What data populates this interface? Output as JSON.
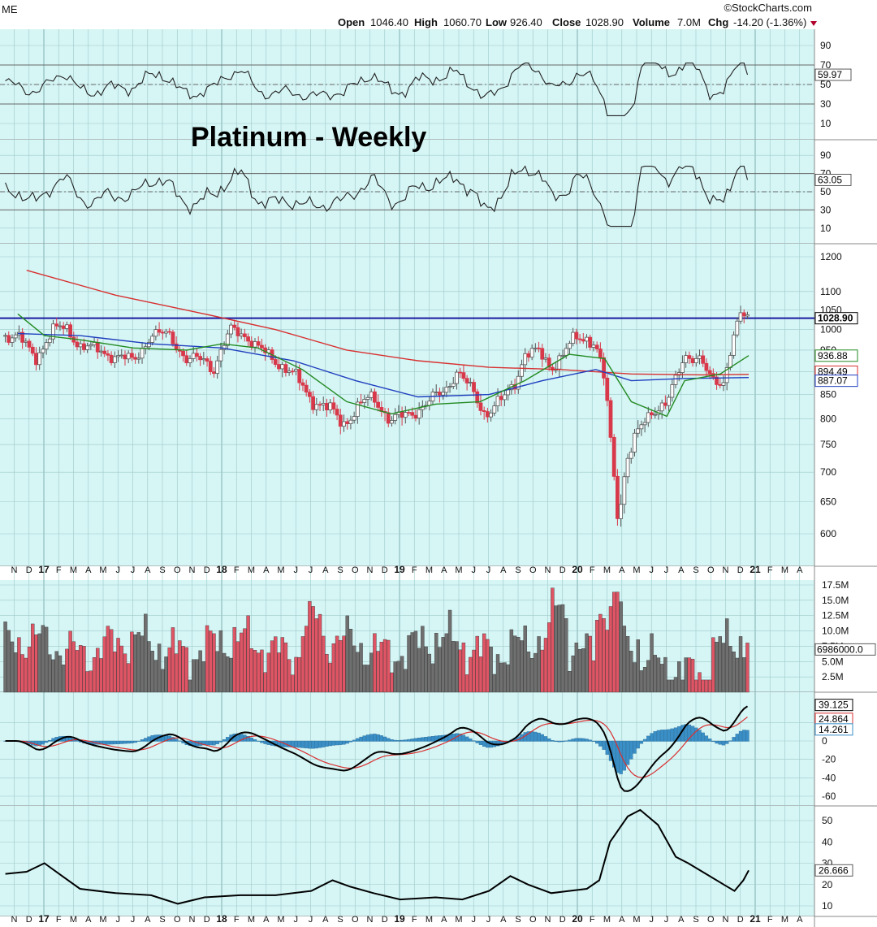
{
  "header": {
    "corner_text": "ME",
    "brand": "©StockCharts.com",
    "open_label": "Open",
    "open_value": "1046.40",
    "high_label": "High",
    "high_value": "1060.70",
    "low_label": "Low",
    "low_value": "926.40",
    "close_label": "Close",
    "close_value": "1028.90",
    "volume_label": "Volume",
    "volume_value": "7.0M",
    "chg_label": "Chg",
    "chg_value": "-14.20 (-1.36%)"
  },
  "colors": {
    "panel_bg": "#d6f5f5",
    "grid": "#9ec9c9",
    "up": "#555555",
    "down": "#d8394a",
    "ma_green": "#228b22",
    "ma_blue": "#1f3fbf",
    "ma_red": "#d83030",
    "hline": "#1a1aa0",
    "histogram": "#3a8fc7"
  },
  "chart_data": {
    "type": "candlestick",
    "title": "Platinum - Weekly",
    "frequency": "weekly",
    "date_range": [
      "2016-11",
      "2020-12"
    ],
    "time_axis": {
      "labels": [
        "N",
        "D",
        "17",
        "F",
        "M",
        "A",
        "M",
        "J",
        "J",
        "A",
        "S",
        "O",
        "N",
        "D",
        "18",
        "F",
        "M",
        "A",
        "M",
        "J",
        "J",
        "A",
        "S",
        "O",
        "N",
        "D",
        "19",
        "F",
        "M",
        "A",
        "M",
        "J",
        "J",
        "A",
        "S",
        "O",
        "N",
        "D",
        "20",
        "F",
        "M",
        "A",
        "M",
        "J",
        "J",
        "A",
        "S",
        "O",
        "N",
        "D",
        "21",
        "F",
        "M",
        "A"
      ],
      "year_markers": [
        "17",
        "18",
        "19",
        "20",
        "21"
      ]
    },
    "price_panel": {
      "y_ticks": [
        600,
        650,
        700,
        750,
        800,
        850,
        900,
        950,
        1000,
        1050,
        1100,
        1200
      ],
      "resistance_line": 1028.9,
      "last_close": "1028.90",
      "ma_tags": [
        "936.88",
        "894.49",
        "887.07"
      ],
      "close_path_points": [
        [
          2016.85,
          985
        ],
        [
          2016.95,
          930
        ],
        [
          2017.05,
          1000
        ],
        [
          2017.12,
          1005
        ],
        [
          2017.2,
          960
        ],
        [
          2017.3,
          950
        ],
        [
          2017.4,
          935
        ],
        [
          2017.5,
          925
        ],
        [
          2017.6,
          985
        ],
        [
          2017.7,
          990
        ],
        [
          2017.8,
          925
        ],
        [
          2017.9,
          930
        ],
        [
          2017.95,
          905
        ],
        [
          2018.05,
          1000
        ],
        [
          2018.12,
          990
        ],
        [
          2018.2,
          955
        ],
        [
          2018.3,
          925
        ],
        [
          2018.4,
          895
        ],
        [
          2018.5,
          840
        ],
        [
          2018.6,
          820
        ],
        [
          2018.68,
          790
        ],
        [
          2018.78,
          830
        ],
        [
          2018.85,
          845
        ],
        [
          2018.95,
          795
        ],
        [
          2019.05,
          810
        ],
        [
          2019.15,
          830
        ],
        [
          2019.25,
          860
        ],
        [
          2019.32,
          900
        ],
        [
          2019.4,
          860
        ],
        [
          2019.48,
          810
        ],
        [
          2019.58,
          840
        ],
        [
          2019.65,
          880
        ],
        [
          2019.7,
          940
        ],
        [
          2019.78,
          945
        ],
        [
          2019.85,
          910
        ],
        [
          2019.92,
          940
        ],
        [
          2019.98,
          980
        ],
        [
          2020.05,
          980
        ],
        [
          2020.1,
          960
        ],
        [
          2020.15,
          880
        ],
        [
          2020.2,
          700
        ],
        [
          2020.23,
          620
        ],
        [
          2020.27,
          720
        ],
        [
          2020.35,
          780
        ],
        [
          2020.42,
          820
        ],
        [
          2020.5,
          830
        ],
        [
          2020.55,
          880
        ],
        [
          2020.6,
          940
        ],
        [
          2020.68,
          930
        ],
        [
          2020.75,
          880
        ],
        [
          2020.82,
          880
        ],
        [
          2020.88,
          990
        ],
        [
          2020.92,
          1040
        ],
        [
          2020.96,
          1028.9
        ]
      ],
      "ma_green_points": [
        [
          2016.85,
          1040
        ],
        [
          2017.0,
          985
        ],
        [
          2017.2,
          975
        ],
        [
          2017.5,
          955
        ],
        [
          2017.8,
          950
        ],
        [
          2018.0,
          965
        ],
        [
          2018.2,
          955
        ],
        [
          2018.45,
          905
        ],
        [
          2018.7,
          835
        ],
        [
          2018.95,
          810
        ],
        [
          2019.2,
          830
        ],
        [
          2019.45,
          835
        ],
        [
          2019.7,
          880
        ],
        [
          2019.95,
          940
        ],
        [
          2020.15,
          930
        ],
        [
          2020.3,
          835
        ],
        [
          2020.5,
          805
        ],
        [
          2020.6,
          880
        ],
        [
          2020.8,
          895
        ],
        [
          2020.96,
          937
        ]
      ],
      "ma_blue_points": [
        [
          2016.85,
          990
        ],
        [
          2017.2,
          985
        ],
        [
          2017.6,
          965
        ],
        [
          2018.0,
          955
        ],
        [
          2018.4,
          925
        ],
        [
          2018.75,
          880
        ],
        [
          2019.1,
          845
        ],
        [
          2019.5,
          850
        ],
        [
          2019.8,
          880
        ],
        [
          2020.1,
          905
        ],
        [
          2020.3,
          880
        ],
        [
          2020.6,
          885
        ],
        [
          2020.96,
          887
        ]
      ],
      "ma_red_points": [
        [
          2016.9,
          1160
        ],
        [
          2017.4,
          1090
        ],
        [
          2017.9,
          1040
        ],
        [
          2018.3,
          1000
        ],
        [
          2018.7,
          950
        ],
        [
          2019.1,
          925
        ],
        [
          2019.5,
          910
        ],
        [
          2019.9,
          905
        ],
        [
          2020.3,
          895
        ],
        [
          2020.7,
          893
        ],
        [
          2020.96,
          894
        ]
      ]
    },
    "rsi_panel_1": {
      "y_ticks": [
        10,
        30,
        50,
        70,
        90
      ],
      "last_value": "59.97"
    },
    "rsi_panel_2": {
      "y_ticks": [
        10,
        30,
        50,
        70,
        90
      ],
      "last_value": "63.05"
    },
    "volume_panel": {
      "y_ticks": [
        "2.5M",
        "5.0M",
        "7.5M",
        "10.0M",
        "12.5M",
        "15.0M",
        "17.5M"
      ],
      "last_value": "6986000.0"
    },
    "macd_panel": {
      "y_ticks": [
        -60,
        -40,
        -20,
        0,
        20
      ],
      "macd_value": "39.125",
      "signal_value": "24.864",
      "hist_value": "14.261"
    },
    "lower_panel": {
      "y_ticks": [
        10,
        20,
        30,
        40,
        50
      ],
      "last_value": "26.666"
    }
  }
}
